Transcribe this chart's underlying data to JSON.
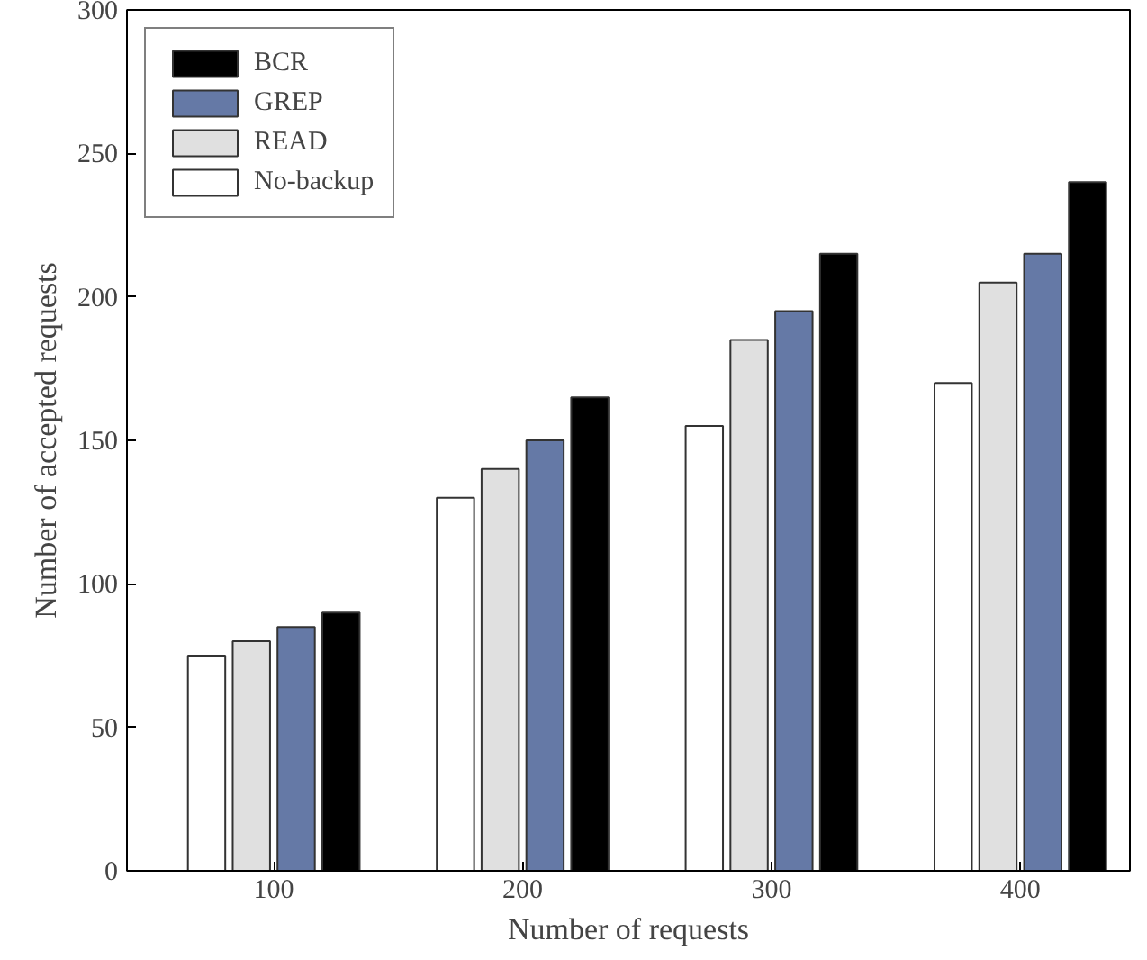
{
  "chart_data": {
    "type": "bar",
    "xlabel": "Number of requests",
    "ylabel": "Number of accepted requests",
    "categories": [
      "100",
      "200",
      "300",
      "400"
    ],
    "series": [
      {
        "name": "No-backup",
        "color": "#ffffff",
        "values": [
          75,
          130,
          155,
          170
        ]
      },
      {
        "name": "READ",
        "color": "#e0e0e0",
        "values": [
          80,
          140,
          185,
          205
        ]
      },
      {
        "name": "GREP",
        "color": "#6579a6",
        "values": [
          85,
          150,
          195,
          215
        ]
      },
      {
        "name": "BCR",
        "color": "#000000",
        "values": [
          90,
          165,
          215,
          240
        ]
      }
    ],
    "ylim": [
      0,
      300
    ],
    "yticks": [
      0,
      50,
      100,
      150,
      200,
      250,
      300
    ],
    "grid": false,
    "legend": "top left"
  }
}
